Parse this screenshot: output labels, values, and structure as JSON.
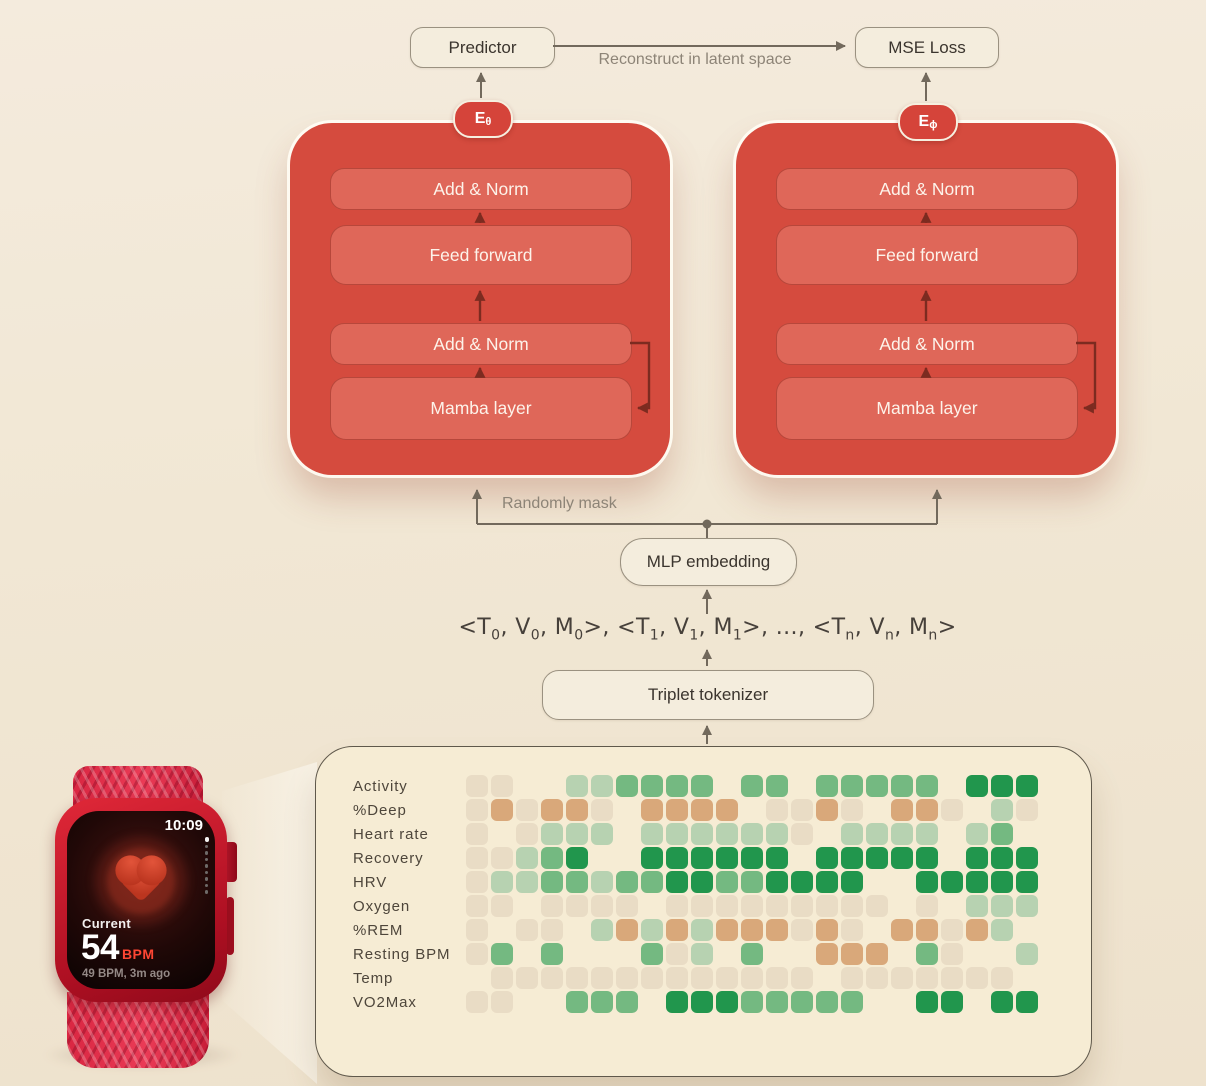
{
  "top": {
    "predictor_label": "Predictor",
    "mse_label": "MSE Loss",
    "reconstruct_label": "Reconstruct in latent space"
  },
  "encoders": [
    {
      "badge": {
        "main": "E",
        "sub": "θ"
      },
      "layers": [
        "Add & Norm",
        "Feed forward",
        "Add & Norm",
        "Mamba layer"
      ]
    },
    {
      "badge": {
        "main": "E",
        "sub": "ϕ"
      },
      "layers": [
        "Add & Norm",
        "Feed forward",
        "Add & Norm",
        "Mamba layer"
      ]
    }
  ],
  "middle": {
    "mask_label": "Randomly mask",
    "mlp_label": "MLP embedding",
    "tokenizer_label": "Triplet tokenizer",
    "token_segments": [
      {
        "t": "<T",
        "s": "0"
      },
      {
        "t": ", V",
        "s": "0"
      },
      {
        "t": ", M",
        "s": "0"
      },
      {
        "t": ">,  <T",
        "s": "1"
      },
      {
        "t": ", V",
        "s": "1"
      },
      {
        "t": ", M",
        "s": "1"
      },
      {
        "t": ">, ...,  <T",
        "s": "n"
      },
      {
        "t": ", V",
        "s": "n"
      },
      {
        "t": ", M",
        "s": "n"
      },
      {
        "t": ">",
        "s": ""
      }
    ]
  },
  "watch": {
    "time": "10:09",
    "current_label": "Current",
    "bpm_value": "54",
    "bpm_unit": "BPM",
    "last_reading": "49 BPM, 3m ago"
  },
  "heatmap": {
    "rows": [
      "Activity",
      "%Deep",
      "Heart rate",
      "Recovery",
      "HRV",
      "Oxygen",
      "%REM",
      "Resting BPM",
      "Temp",
      "VO2Max"
    ],
    "palette": {
      "0": "transparent",
      "1": "#e9dcc5",
      "2": "#d9a87a",
      "3": "#b7d2b1",
      "4": "#74b981",
      "5": "#21964d"
    },
    "cells": [
      [
        1,
        1,
        0,
        0,
        3,
        3,
        4,
        4,
        4,
        4,
        0,
        4,
        4,
        0,
        4,
        4,
        4,
        4,
        4,
        0,
        5,
        5,
        5
      ],
      [
        1,
        2,
        1,
        2,
        2,
        1,
        0,
        2,
        2,
        2,
        2,
        0,
        1,
        1,
        2,
        1,
        0,
        2,
        2,
        1,
        0,
        3,
        1
      ],
      [
        1,
        0,
        1,
        3,
        3,
        3,
        0,
        3,
        3,
        3,
        3,
        3,
        3,
        1,
        0,
        3,
        3,
        3,
        3,
        0,
        3,
        4,
        0
      ],
      [
        1,
        1,
        3,
        4,
        5,
        0,
        0,
        5,
        5,
        5,
        5,
        5,
        5,
        0,
        5,
        5,
        5,
        5,
        5,
        0,
        5,
        5,
        5
      ],
      [
        1,
        3,
        3,
        4,
        4,
        3,
        4,
        4,
        5,
        5,
        4,
        4,
        5,
        5,
        5,
        5,
        0,
        0,
        5,
        5,
        5,
        5,
        5
      ],
      [
        1,
        1,
        0,
        1,
        1,
        1,
        1,
        0,
        1,
        1,
        1,
        1,
        1,
        1,
        1,
        1,
        1,
        0,
        1,
        0,
        3,
        3,
        3
      ],
      [
        1,
        0,
        1,
        1,
        0,
        3,
        2,
        3,
        2,
        3,
        2,
        2,
        2,
        1,
        2,
        1,
        0,
        2,
        2,
        1,
        2,
        3,
        0
      ],
      [
        1,
        4,
        0,
        4,
        0,
        0,
        0,
        4,
        1,
        3,
        0,
        4,
        0,
        0,
        2,
        2,
        2,
        0,
        4,
        1,
        0,
        0,
        3
      ],
      [
        0,
        1,
        1,
        1,
        1,
        1,
        1,
        1,
        1,
        1,
        1,
        1,
        1,
        1,
        0,
        1,
        1,
        1,
        1,
        1,
        1,
        1,
        0
      ],
      [
        1,
        1,
        0,
        0,
        4,
        4,
        4,
        0,
        5,
        5,
        5,
        4,
        4,
        4,
        4,
        4,
        0,
        0,
        5,
        5,
        0,
        5,
        5
      ]
    ]
  },
  "colors": {
    "block_red": "#d54b3e",
    "inner_red": "#df6759",
    "arrow_gray": "#72695c",
    "arrow_dark": "#7c2b20",
    "panel_bg": "#f6ecd4",
    "page_bg": "#f0e6d3",
    "bpm_accent": "#fe4633"
  }
}
